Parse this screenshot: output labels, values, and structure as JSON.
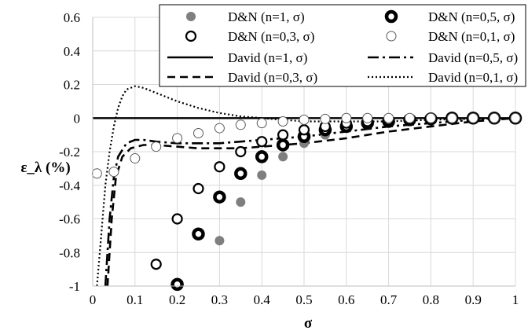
{
  "chart_data": {
    "type": "scatter",
    "xlabel": "σ",
    "ylabel": "ε_λ (%)",
    "xlim": [
      0,
      1
    ],
    "ylim": [
      -1,
      0.6
    ],
    "x_ticks": [
      "0",
      "0.1",
      "0.2",
      "0.3",
      "0.4",
      "0.5",
      "0.6",
      "0.7",
      "0.8",
      "0.9",
      "1"
    ],
    "y_ticks": [
      "0.6",
      "0.4",
      "0.2",
      "0",
      "-0.2",
      "-0.4",
      "-0.6",
      "-0.8",
      "-1"
    ],
    "grid": true,
    "legend_position": "top-right",
    "series": [
      {
        "name": "D&N (n=1, σ)",
        "kind": "marker",
        "style": "filled-gray",
        "points": [
          [
            0.2,
            -0.99
          ],
          [
            0.3,
            -0.73
          ],
          [
            0.35,
            -0.5
          ],
          [
            0.4,
            -0.34
          ],
          [
            0.45,
            -0.23
          ],
          [
            0.5,
            -0.15
          ],
          [
            0.55,
            -0.1
          ],
          [
            0.6,
            -0.06
          ],
          [
            0.65,
            -0.04
          ],
          [
            0.7,
            -0.02
          ],
          [
            0.75,
            -0.01
          ],
          [
            0.8,
            -0.005
          ],
          [
            0.85,
            0.0
          ],
          [
            0.9,
            0.0
          ],
          [
            0.95,
            0.0
          ],
          [
            1.0,
            0.0
          ]
        ]
      },
      {
        "name": "D&N (n=0,5, σ)",
        "kind": "marker",
        "style": "thick-ring",
        "points": [
          [
            0.2,
            -0.99
          ],
          [
            0.25,
            -0.69
          ],
          [
            0.3,
            -0.47
          ],
          [
            0.35,
            -0.33
          ],
          [
            0.4,
            -0.23
          ],
          [
            0.45,
            -0.16
          ],
          [
            0.5,
            -0.11
          ],
          [
            0.55,
            -0.07
          ],
          [
            0.6,
            -0.05
          ],
          [
            0.65,
            -0.03
          ],
          [
            0.7,
            -0.02
          ],
          [
            0.75,
            -0.01
          ],
          [
            0.8,
            -0.005
          ],
          [
            0.85,
            0.0
          ],
          [
            0.9,
            0.0
          ],
          [
            0.95,
            0.0
          ],
          [
            1.0,
            0.0
          ]
        ]
      },
      {
        "name": "D&N (n=0,3, σ)",
        "kind": "marker",
        "style": "ring",
        "points": [
          [
            0.15,
            -0.87
          ],
          [
            0.2,
            -0.6
          ],
          [
            0.25,
            -0.42
          ],
          [
            0.3,
            -0.29
          ],
          [
            0.35,
            -0.2
          ],
          [
            0.4,
            -0.14
          ],
          [
            0.45,
            -0.1
          ],
          [
            0.5,
            -0.07
          ],
          [
            0.55,
            -0.05
          ],
          [
            0.6,
            -0.03
          ],
          [
            0.65,
            -0.02
          ],
          [
            0.7,
            -0.01
          ],
          [
            0.75,
            -0.005
          ],
          [
            0.8,
            0.0
          ],
          [
            0.85,
            0.0
          ],
          [
            0.9,
            0.0
          ],
          [
            0.95,
            0.0
          ],
          [
            1.0,
            0.0
          ]
        ]
      },
      {
        "name": "D&N (n=0,1, σ)",
        "kind": "marker",
        "style": "thin-ring",
        "points": [
          [
            0.01,
            -0.33
          ],
          [
            0.05,
            -0.32
          ],
          [
            0.1,
            -0.24
          ],
          [
            0.15,
            -0.17
          ],
          [
            0.2,
            -0.12
          ],
          [
            0.25,
            -0.09
          ],
          [
            0.3,
            -0.06
          ],
          [
            0.35,
            -0.04
          ],
          [
            0.4,
            -0.03
          ],
          [
            0.45,
            -0.02
          ],
          [
            0.5,
            -0.01
          ],
          [
            0.55,
            -0.005
          ],
          [
            0.6,
            0.0
          ],
          [
            0.65,
            0.0
          ],
          [
            0.7,
            0.0
          ],
          [
            0.75,
            0.0
          ],
          [
            0.8,
            0.0
          ],
          [
            0.85,
            0.0
          ],
          [
            0.9,
            0.0
          ],
          [
            0.95,
            0.0
          ],
          [
            1.0,
            0.0
          ]
        ]
      },
      {
        "name": "David (n=1, σ)",
        "kind": "line",
        "style": "solid",
        "points": [
          [
            0.0,
            0.0
          ],
          [
            1.0,
            0.0
          ]
        ]
      },
      {
        "name": "David (n=0,5, σ)",
        "kind": "line",
        "style": "dash-dot",
        "points": [
          [
            0.03,
            -1.0
          ],
          [
            0.04,
            -0.6
          ],
          [
            0.05,
            -0.35
          ],
          [
            0.06,
            -0.23
          ],
          [
            0.08,
            -0.15
          ],
          [
            0.1,
            -0.13
          ],
          [
            0.12,
            -0.13
          ],
          [
            0.15,
            -0.14
          ],
          [
            0.2,
            -0.15
          ],
          [
            0.25,
            -0.15
          ],
          [
            0.3,
            -0.15
          ],
          [
            0.35,
            -0.14
          ],
          [
            0.4,
            -0.13
          ],
          [
            0.5,
            -0.11
          ],
          [
            0.6,
            -0.08
          ],
          [
            0.7,
            -0.05
          ],
          [
            0.8,
            -0.03
          ],
          [
            0.9,
            -0.01
          ],
          [
            1.0,
            0.0
          ]
        ]
      },
      {
        "name": "David (n=0,3, σ)",
        "kind": "line",
        "style": "dashed",
        "points": [
          [
            0.035,
            -1.0
          ],
          [
            0.045,
            -0.6
          ],
          [
            0.055,
            -0.35
          ],
          [
            0.07,
            -0.23
          ],
          [
            0.09,
            -0.18
          ],
          [
            0.12,
            -0.16
          ],
          [
            0.15,
            -0.16
          ],
          [
            0.2,
            -0.17
          ],
          [
            0.25,
            -0.18
          ],
          [
            0.3,
            -0.18
          ],
          [
            0.35,
            -0.18
          ],
          [
            0.4,
            -0.17
          ],
          [
            0.5,
            -0.15
          ],
          [
            0.6,
            -0.12
          ],
          [
            0.7,
            -0.08
          ],
          [
            0.8,
            -0.05
          ],
          [
            0.9,
            -0.02
          ],
          [
            1.0,
            0.0
          ]
        ]
      },
      {
        "name": "David (n=0,1, σ)",
        "kind": "line",
        "style": "dotted",
        "points": [
          [
            0.01,
            -1.0
          ],
          [
            0.02,
            -0.7
          ],
          [
            0.03,
            -0.4
          ],
          [
            0.04,
            -0.2
          ],
          [
            0.05,
            -0.05
          ],
          [
            0.06,
            0.06
          ],
          [
            0.07,
            0.13
          ],
          [
            0.08,
            0.17
          ],
          [
            0.09,
            0.18
          ],
          [
            0.1,
            0.19
          ],
          [
            0.12,
            0.18
          ],
          [
            0.15,
            0.15
          ],
          [
            0.2,
            0.1
          ],
          [
            0.25,
            0.06
          ],
          [
            0.3,
            0.03
          ],
          [
            0.35,
            0.01
          ],
          [
            0.4,
            0.0
          ],
          [
            0.45,
            -0.01
          ],
          [
            0.5,
            -0.02
          ],
          [
            0.6,
            -0.02
          ],
          [
            0.7,
            -0.02
          ],
          [
            0.8,
            -0.01
          ],
          [
            0.9,
            -0.005
          ],
          [
            1.0,
            0.0
          ]
        ]
      }
    ]
  }
}
